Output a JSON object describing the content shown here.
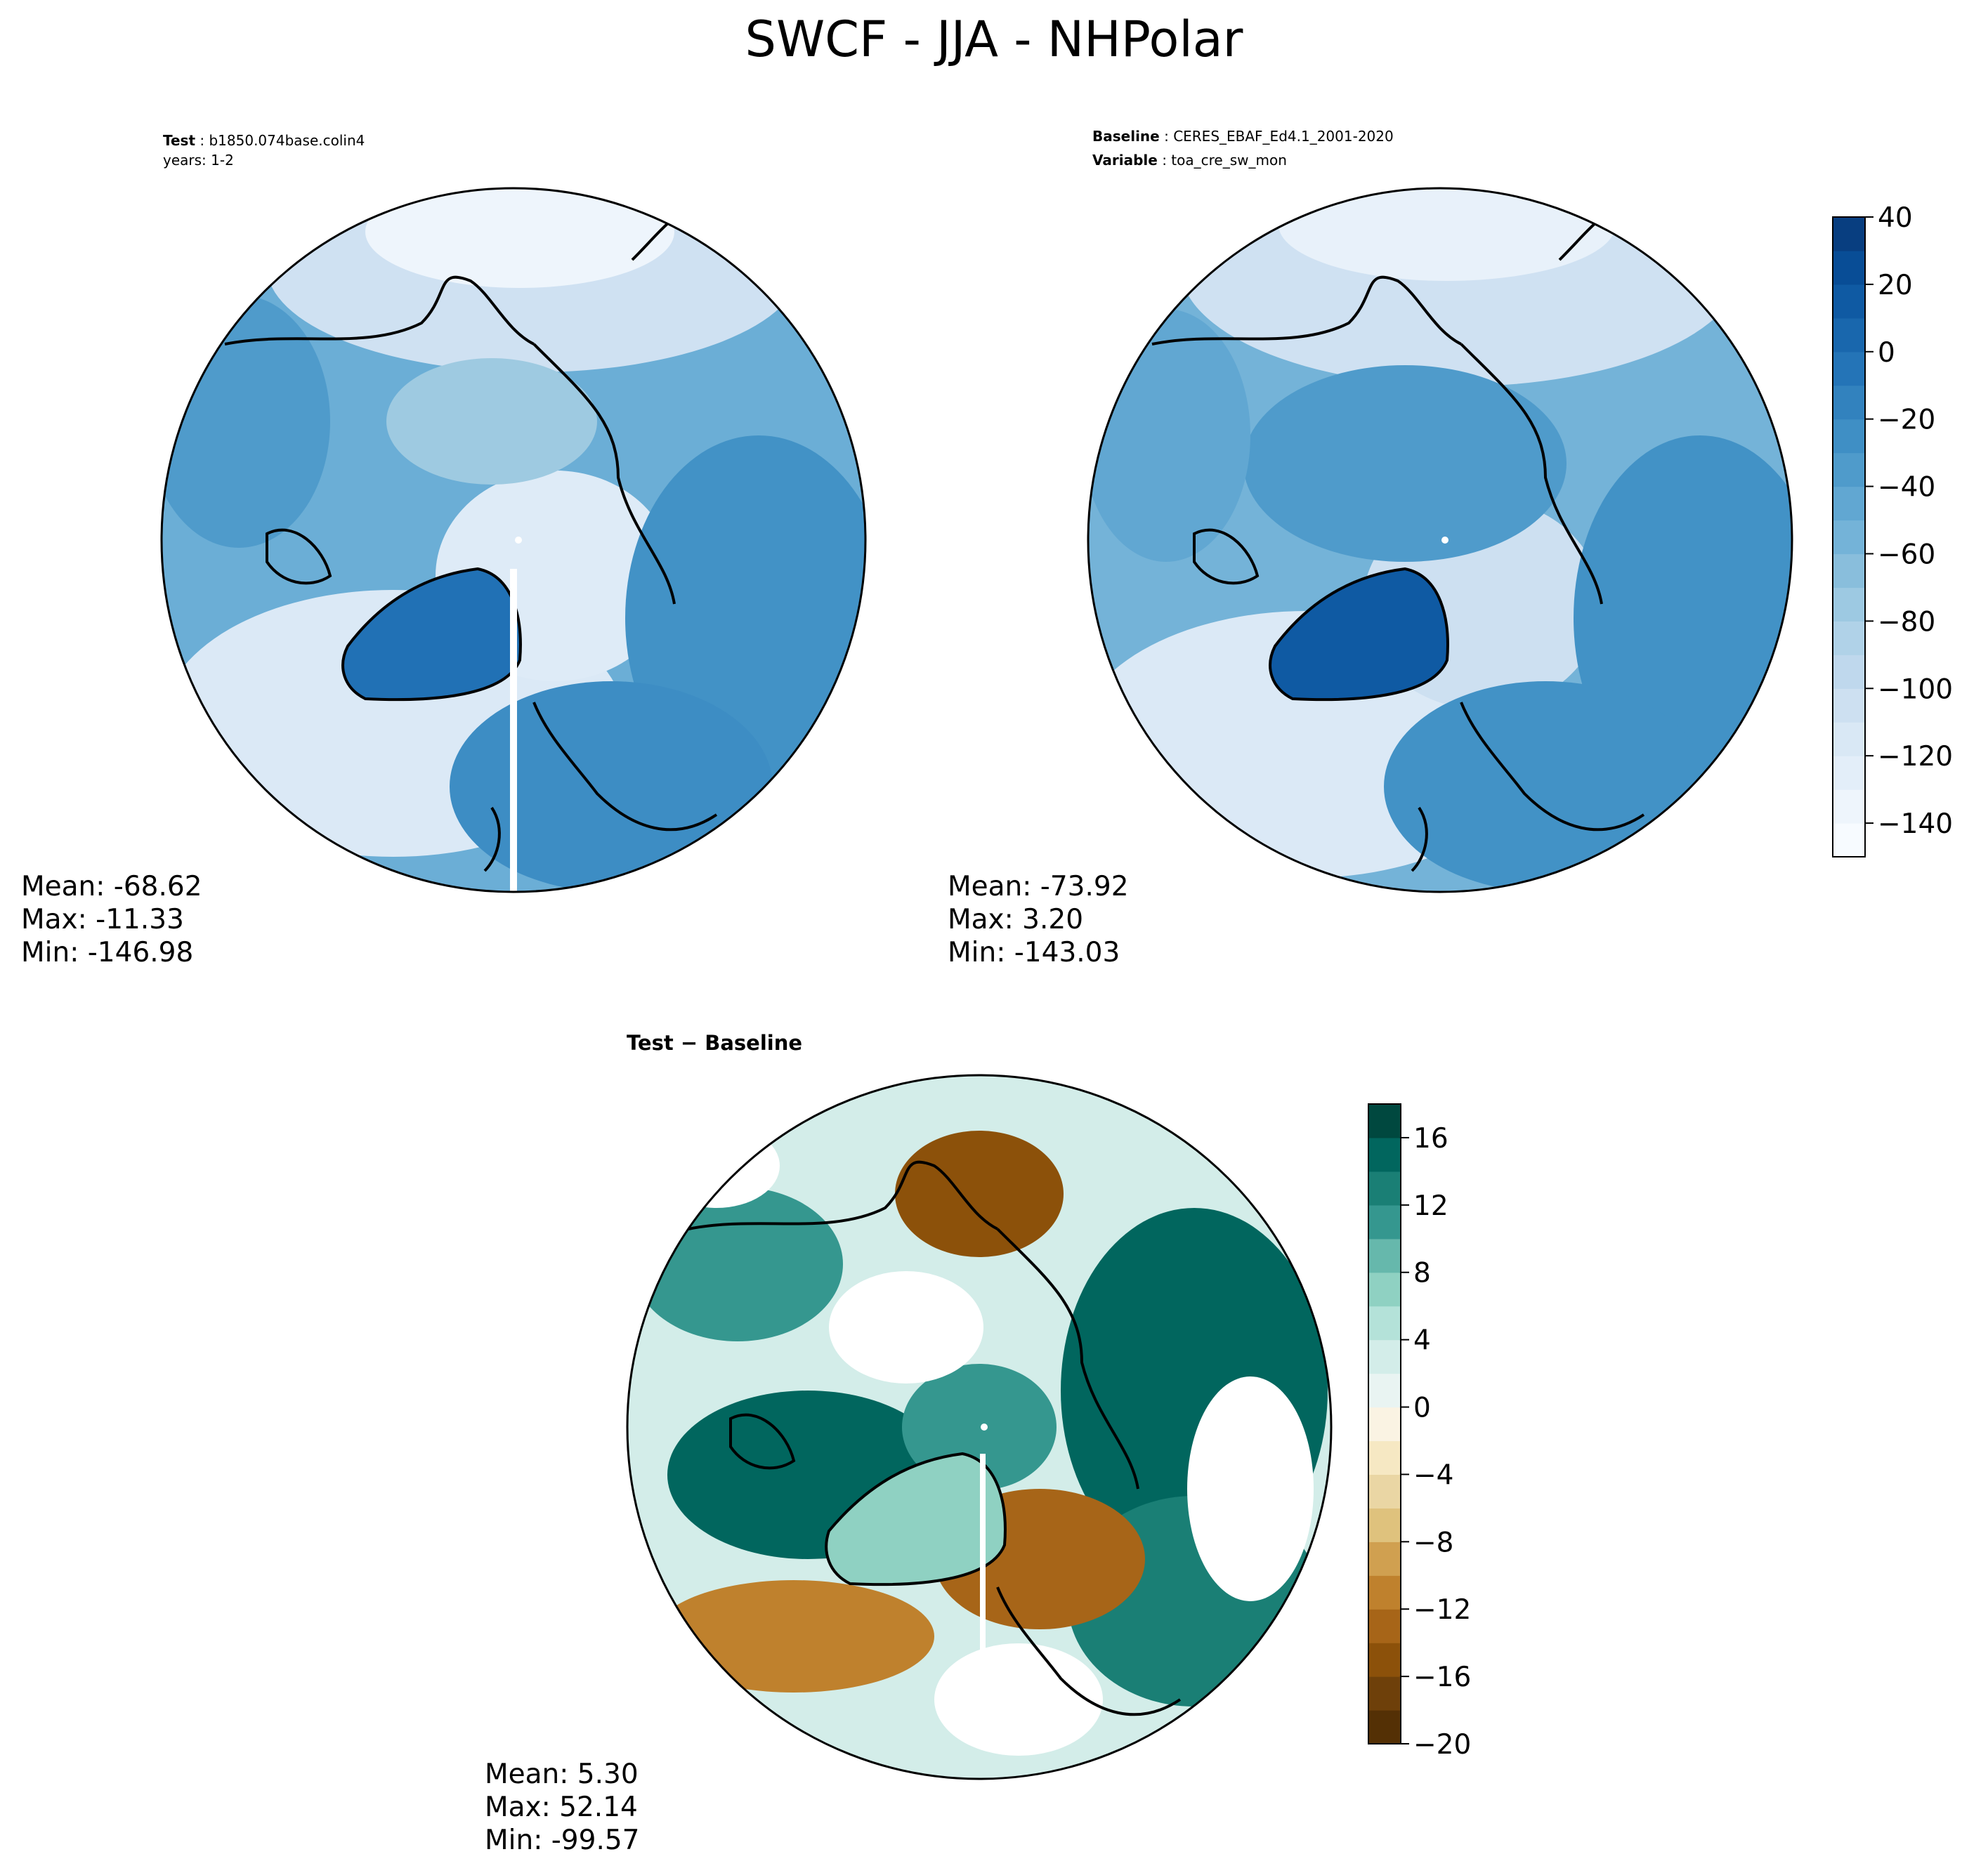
{
  "figure_title": "SWCF - JJA - NHPolar",
  "chart_data": [
    {
      "type": "heatmap",
      "panel": "test",
      "projection": "north-polar-stereographic",
      "header": [
        {
          "label": "Test",
          "value": "b1850.074base.colin4"
        },
        {
          "label": "",
          "value": "years: 1-2"
        }
      ],
      "stats": {
        "mean": "Mean: -68.62",
        "max": "Max: -11.33",
        "min": "Min: -146.98"
      },
      "colormap": "Blues_r",
      "range": [
        -150,
        40
      ]
    },
    {
      "type": "heatmap",
      "panel": "baseline",
      "projection": "north-polar-stereographic",
      "header": [
        {
          "label": "Baseline",
          "value": "CERES_EBAF_Ed4.1_2001-2020"
        },
        {
          "label": "Variable",
          "value": "toa_cre_sw_mon"
        }
      ],
      "stats": {
        "mean": "Mean: -73.92",
        "max": "Max:  3.20",
        "min": "Min: -143.03"
      },
      "colorbar": {
        "range": [
          -150,
          40
        ],
        "ticks": [
          40,
          20,
          0,
          -20,
          -40,
          -60,
          -80,
          -100,
          -120,
          -140
        ],
        "tick_labels": [
          "40",
          "20",
          "0",
          "−20",
          "−40",
          "−60",
          "−80",
          "−100",
          "−120",
          "−140"
        ],
        "levels": [
          -150,
          -140,
          -130,
          -120,
          -110,
          -100,
          -90,
          -80,
          -70,
          -60,
          -50,
          -40,
          -30,
          -20,
          -10,
          0,
          10,
          20,
          30,
          40
        ],
        "colors": [
          "#f7fbff",
          "#eef5fc",
          "#e3eef9",
          "#d9e8f5",
          "#cde0f1",
          "#bfd8ed",
          "#b0d2e8",
          "#9dc9e2",
          "#89bedc",
          "#74b3d8",
          "#61a7d2",
          "#4f9bcb",
          "#3f8fc5",
          "#3282be",
          "#2474b7",
          "#1967ad",
          "#0f5aa3",
          "#084d96",
          "#083e80"
        ]
      }
    },
    {
      "type": "heatmap",
      "panel": "difference",
      "projection": "north-polar-stereographic",
      "header": [
        {
          "label": "Test − Baseline",
          "value": ""
        }
      ],
      "stats": {
        "mean": "Mean:  5.30",
        "max": "Max: 52.14",
        "min": "Min: -99.57"
      },
      "colorbar": {
        "range": [
          -20,
          18
        ],
        "ticks": [
          16,
          12,
          8,
          4,
          0,
          -4,
          -8,
          -12,
          -16,
          -20
        ],
        "tick_labels": [
          "16",
          "12",
          "8",
          "4",
          "0",
          "−4",
          "−8",
          "−12",
          "−16",
          "−20"
        ],
        "levels": [
          -20,
          -18,
          -16,
          -14,
          -12,
          -10,
          -8,
          -6,
          -4,
          -2,
          0,
          2,
          4,
          6,
          8,
          10,
          12,
          14,
          16,
          18
        ],
        "colors": [
          "#543005",
          "#6e400a",
          "#8c510a",
          "#a76518",
          "#bf812d",
          "#d0a050",
          "#dfc27d",
          "#ead6a4",
          "#f6e8c3",
          "#faf3e3",
          "#e9f4f2",
          "#d3ede9",
          "#b4e2d9",
          "#8fd1c2",
          "#66b8ac",
          "#35978f",
          "#1a7f75",
          "#01665e",
          "#00483f"
        ]
      }
    }
  ]
}
